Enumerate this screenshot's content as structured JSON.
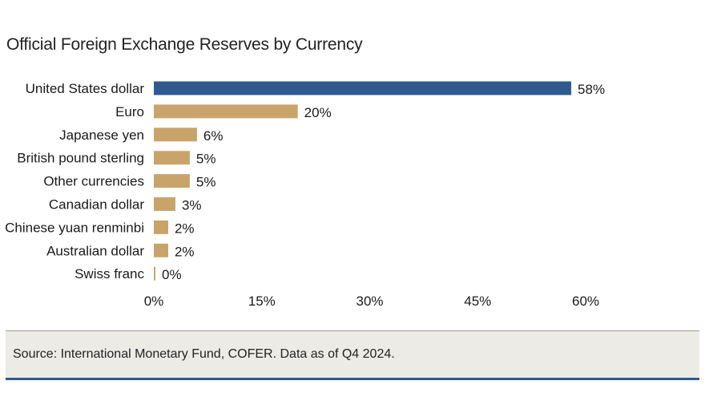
{
  "chart_data": {
    "type": "bar",
    "orientation": "horizontal",
    "title": "Official Foreign Exchange Reserves by Currency",
    "categories": [
      "United States dollar",
      "Euro",
      "Japanese yen",
      "British pound sterling",
      "Other currencies",
      "Canadian dollar",
      "Chinese yuan renminbi",
      "Australian dollar",
      "Swiss franc"
    ],
    "values": [
      58,
      20,
      6,
      5,
      5,
      3,
      2,
      2,
      0
    ],
    "value_labels": [
      "58%",
      "20%",
      "6%",
      "5%",
      "5%",
      "3%",
      "2%",
      "2%",
      "0%"
    ],
    "xlim": [
      0,
      60
    ],
    "xticks": [
      0,
      15,
      30,
      45,
      60
    ],
    "xtick_labels": [
      "0%",
      "15%",
      "30%",
      "45%",
      "60%"
    ],
    "grid": false,
    "legend": false,
    "colors": {
      "highlight": "#2f5a8f",
      "default": "#c9a46a"
    },
    "highlight_index": 0
  },
  "source": "Source: International Monetary Fund, COFER. Data as of Q4 2024."
}
